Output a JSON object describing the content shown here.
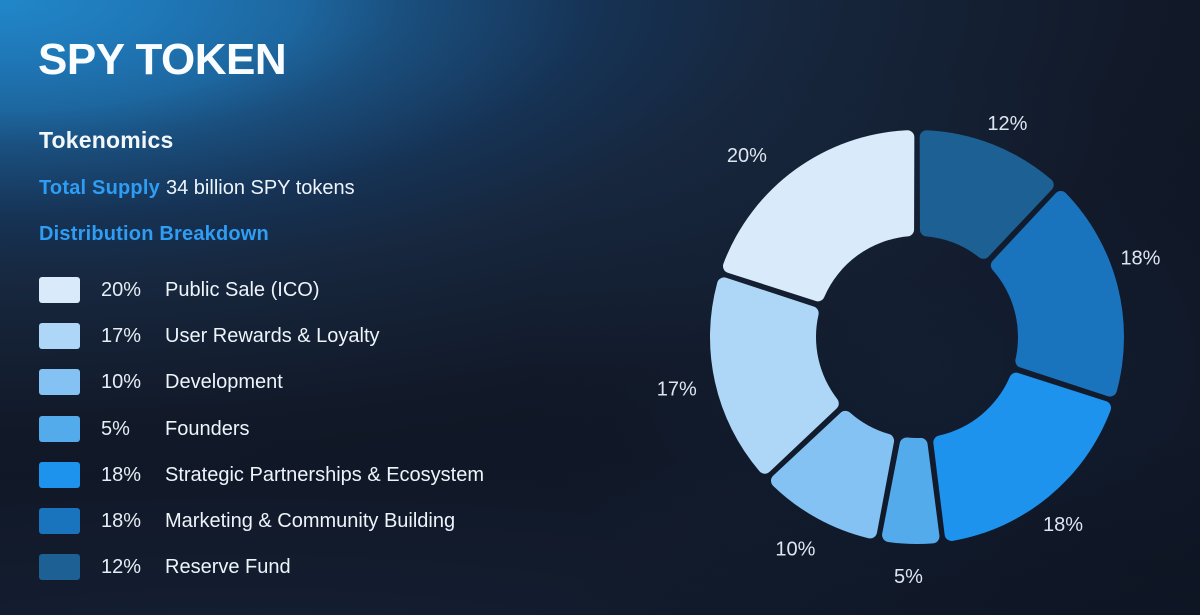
{
  "header": {
    "title": "SPY TOKEN"
  },
  "sections": {
    "tokenomics_heading": "Tokenomics",
    "total_supply_label": "Total Supply",
    "total_supply_value": "34 billion SPY tokens",
    "distribution_heading": "Distribution Breakdown"
  },
  "colors": {
    "background_top_left": "#2a87c7",
    "background_dark": "#0d1524",
    "heading_accent": "#2f9df3",
    "text_primary": "#eef4fb",
    "chart_label": "#dde6f0"
  },
  "chart_data": {
    "type": "pie",
    "variant": "donut",
    "title": "SPY Token Distribution Breakdown",
    "unit": "%",
    "total": 100,
    "segments": [
      {
        "label": "Public Sale (ICO)",
        "value": 20,
        "color": "#d9eafa"
      },
      {
        "label": "User Rewards & Loyalty",
        "value": 17,
        "color": "#aed7f7"
      },
      {
        "label": "Development",
        "value": 10,
        "color": "#83c2f2"
      },
      {
        "label": "Founders",
        "value": 5,
        "color": "#54abec"
      },
      {
        "label": "Strategic Partnerships & Ecosystem",
        "value": 18,
        "color": "#1d93ee"
      },
      {
        "label": "Marketing & Community Building",
        "value": 18,
        "color": "#1a73bd"
      },
      {
        "label": "Reserve Fund",
        "value": 12,
        "color": "#1d6094"
      }
    ],
    "layout_hints": {
      "legend_position": "left",
      "slice_order": "legend order reversed, clockwise, starting at 12 o'clock",
      "labels": "percent values outside ring",
      "grid": false
    }
  }
}
